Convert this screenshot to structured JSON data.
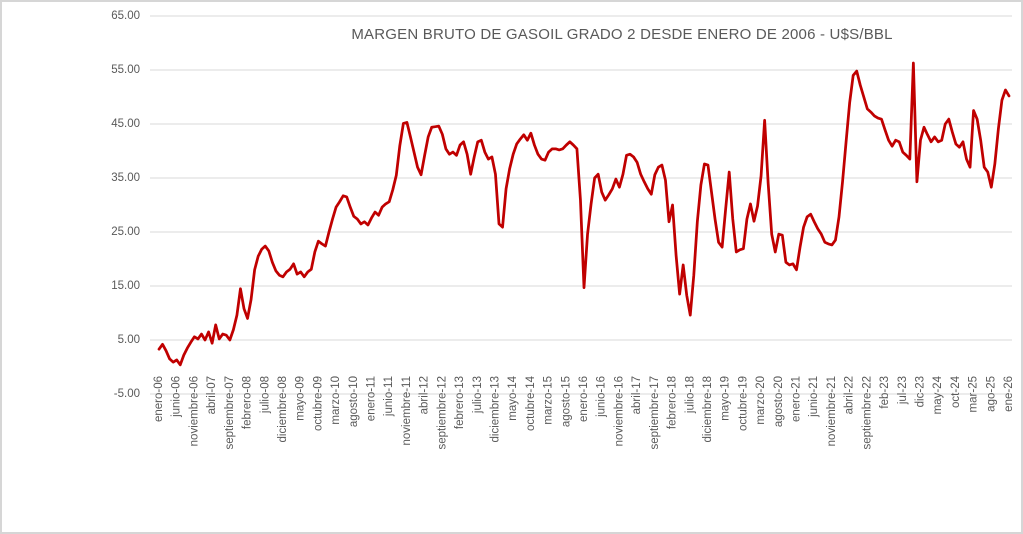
{
  "chart_data": {
    "type": "line",
    "title": "MARGEN BRUTO DE GASOIL GRADO 2 DESDE ENERO DE 2006 - U$S/BBL",
    "series_name": "Margen bruto de gasoil grado 2 (U$S/BBL)",
    "xlabel": "",
    "ylabel": "",
    "ylim": [
      -5,
      65
    ],
    "y_ticks": [
      65,
      55,
      45,
      35,
      25,
      15,
      5,
      -5
    ],
    "grid": true,
    "legend": "none",
    "x_tick_step": 5,
    "x_tick_labels": [
      "enero-06",
      "junio-06",
      "noviembre-06",
      "abril-07",
      "septiembre-07",
      "febrero-08",
      "julio-08",
      "diciembre-08",
      "mayo-09",
      "octubre-09",
      "marzo-10",
      "agosto-10",
      "enero-11",
      "junio-11",
      "noviembre-11",
      "abril-12",
      "septiembre-12",
      "febrero-13",
      "julio-13",
      "diciembre-13",
      "mayo-14",
      "octubre-14",
      "marzo-15",
      "agosto-15",
      "enero-16",
      "junio-16",
      "noviembre-16",
      "abril-17",
      "septiembre-17",
      "febrero-18",
      "julio-18",
      "diciembre-18",
      "mayo-19",
      "octubre-19",
      "marzo-20",
      "agosto-20",
      "enero-21",
      "junio-21",
      "noviembre-21",
      "abril-22",
      "septiembre-22",
      "feb-23",
      "jul-23",
      "dic-23",
      "may-24",
      "oct-24",
      "mar-25",
      "ago-25",
      "ene-26"
    ],
    "values": [
      3.3,
      4.2,
      3.0,
      1.5,
      0.9,
      1.3,
      0.4,
      2.2,
      3.5,
      4.6,
      5.6,
      5.2,
      6.1,
      5.0,
      6.5,
      4.4,
      7.8,
      5.2,
      6.1,
      5.9,
      5.0,
      6.9,
      9.6,
      14.5,
      10.8,
      9.0,
      12.5,
      18.0,
      20.5,
      21.8,
      22.4,
      21.5,
      19.4,
      17.8,
      17.0,
      16.7,
      17.6,
      18.1,
      19.1,
      17.2,
      17.6,
      16.7,
      17.6,
      18.1,
      21.3,
      23.3,
      22.8,
      22.4,
      25.0,
      27.4,
      29.6,
      30.6,
      31.7,
      31.5,
      29.6,
      27.9,
      27.4,
      26.5,
      26.9,
      26.3,
      27.6,
      28.7,
      28.1,
      29.6,
      30.2,
      30.6,
      32.8,
      35.5,
      41.0,
      45.1,
      45.3,
      42.6,
      39.8,
      37.0,
      35.6,
      39.2,
      42.6,
      44.4,
      44.5,
      44.6,
      43.1,
      40.4,
      39.4,
      39.8,
      39.2,
      41.1,
      41.7,
      39.4,
      35.7,
      38.9,
      41.7,
      42.0,
      39.8,
      38.5,
      38.9,
      35.7,
      26.5,
      25.9,
      33.0,
      36.7,
      39.4,
      41.3,
      42.2,
      43.0,
      42.0,
      43.3,
      41.1,
      39.4,
      38.5,
      38.3,
      39.8,
      40.4,
      40.4,
      40.2,
      40.4,
      41.1,
      41.7,
      41.1,
      40.4,
      30.9,
      14.7,
      24.6,
      30.2,
      35.0,
      35.7,
      32.4,
      30.9,
      31.9,
      33.0,
      34.8,
      33.3,
      35.7,
      39.2,
      39.4,
      38.9,
      37.9,
      35.7,
      34.3,
      33.0,
      32.0,
      35.6,
      37.0,
      37.4,
      34.6,
      26.9,
      30.0,
      20.7,
      13.5,
      18.9,
      13.3,
      9.6,
      17.0,
      26.9,
      33.7,
      37.6,
      37.4,
      32.4,
      27.4,
      23.1,
      22.2,
      29.3,
      36.1,
      27.4,
      21.3,
      21.7,
      21.9,
      27.4,
      30.2,
      27.0,
      29.8,
      35.4,
      45.7,
      34.0,
      24.6,
      21.3,
      24.6,
      24.4,
      19.4,
      18.9,
      19.1,
      18.0,
      22.2,
      25.9,
      27.8,
      28.3,
      26.9,
      25.6,
      24.6,
      23.1,
      22.8,
      22.6,
      23.5,
      27.8,
      34.3,
      41.7,
      48.9,
      54.0,
      54.8,
      52.2,
      50.0,
      47.8,
      47.2,
      46.5,
      46.1,
      45.9,
      43.9,
      42.0,
      40.9,
      42.0,
      41.7,
      39.8,
      39.2,
      38.5,
      56.3,
      34.3,
      42.0,
      44.4,
      43.0,
      41.7,
      42.6,
      41.7,
      42.0,
      45.0,
      45.9,
      43.5,
      41.3,
      40.7,
      41.7,
      38.5,
      37.0,
      47.5,
      45.9,
      42.0,
      37.0,
      36.1,
      33.3,
      37.6,
      44.1,
      49.4,
      51.3,
      50.2
    ],
    "line_color": "#C00000",
    "grid_color": "#D9D9D9",
    "text_color": "#595959",
    "background_color": "#FFFFFF",
    "border_color": "#D6D6D6"
  }
}
